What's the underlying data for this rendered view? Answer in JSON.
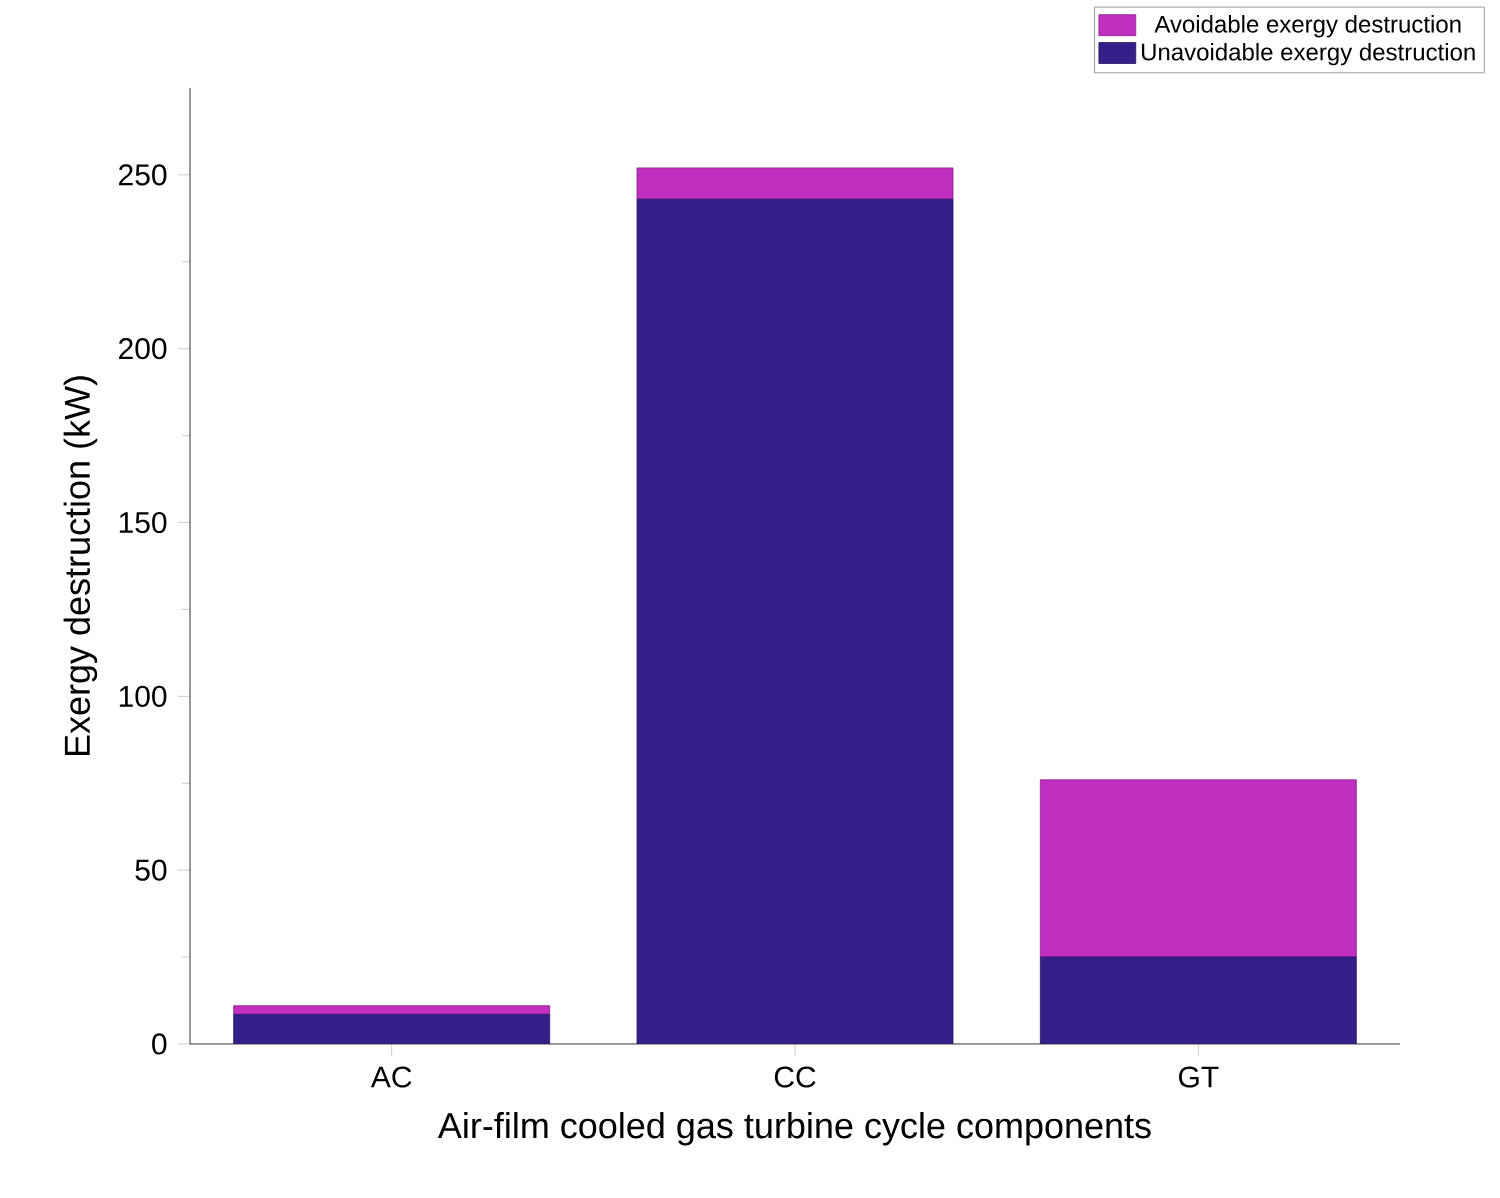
{
  "chart_data": {
    "type": "bar",
    "stacked": true,
    "xlabel": "Air-film cooled gas turbine cycle components",
    "ylabel": "Exergy destruction (kW)",
    "categories": [
      "AC",
      "CC",
      "GT"
    ],
    "series": [
      {
        "name": "Unavoidable exergy destruction",
        "color": "#35208a",
        "values": [
          8.5,
          243,
          25
        ]
      },
      {
        "name": "Avoidable exergy destruction",
        "color": "#c02fbf",
        "values": [
          2.5,
          9,
          51
        ]
      }
    ],
    "ylim": [
      0,
      275
    ],
    "yticks": [
      0,
      50,
      100,
      150,
      200,
      250
    ],
    "legend": "top right"
  }
}
